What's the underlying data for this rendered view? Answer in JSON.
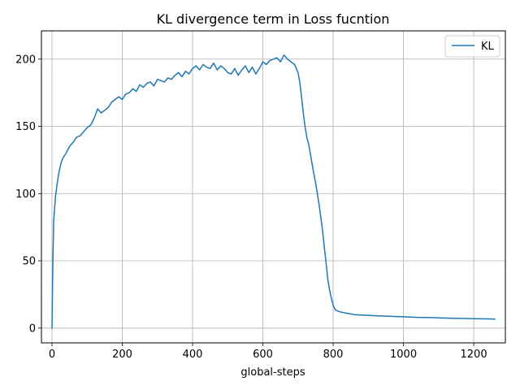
{
  "chart_data": {
    "type": "line",
    "title": "KL divergence term in Loss fucntion",
    "xlabel": "global-steps",
    "ylabel": "",
    "xlim": [
      -30,
      1290
    ],
    "ylim": [
      -11,
      221
    ],
    "xticks": [
      0,
      200,
      400,
      600,
      800,
      1000,
      1200
    ],
    "yticks": [
      0,
      50,
      100,
      150,
      200
    ],
    "grid": true,
    "legend": "top-right",
    "series": [
      {
        "name": "KL",
        "color": "#1f77b4",
        "x": [
          0,
          2,
          5,
          10,
          15,
          20,
          25,
          30,
          40,
          50,
          60,
          70,
          80,
          90,
          100,
          110,
          120,
          130,
          140,
          150,
          160,
          170,
          180,
          190,
          200,
          210,
          220,
          230,
          240,
          250,
          260,
          270,
          280,
          290,
          300,
          310,
          320,
          330,
          340,
          350,
          360,
          370,
          380,
          390,
          400,
          410,
          420,
          430,
          440,
          450,
          460,
          470,
          480,
          490,
          500,
          510,
          520,
          530,
          540,
          550,
          560,
          570,
          580,
          590,
          600,
          610,
          620,
          630,
          640,
          650,
          660,
          670,
          680,
          690,
          700,
          705,
          710,
          715,
          720,
          725,
          730,
          735,
          740,
          745,
          750,
          755,
          760,
          765,
          770,
          775,
          780,
          785,
          790,
          795,
          800,
          805,
          810,
          815,
          820,
          830,
          840,
          850,
          860,
          880,
          900,
          920,
          940,
          960,
          980,
          1000,
          1020,
          1040,
          1060,
          1080,
          1100,
          1120,
          1140,
          1160,
          1180,
          1200,
          1220,
          1240,
          1260
        ],
        "y": [
          0,
          40,
          80,
          98,
          108,
          116,
          122,
          126,
          130,
          135,
          138,
          142,
          143,
          146,
          149,
          151,
          156,
          163,
          160,
          162,
          164,
          168,
          170,
          172,
          170,
          174,
          175,
          178,
          176,
          181,
          179,
          182,
          183,
          180,
          185,
          184,
          183,
          186,
          185,
          188,
          190,
          187,
          191,
          189,
          193,
          195,
          192,
          196,
          194,
          193,
          197,
          192,
          195,
          193,
          190,
          189,
          193,
          188,
          192,
          195,
          190,
          194,
          189,
          193,
          198,
          196,
          199,
          200,
          201,
          198,
          203,
          200,
          198,
          196,
          190,
          183,
          172,
          160,
          150,
          142,
          137,
          130,
          122,
          115,
          108,
          100,
          92,
          82,
          72,
          60,
          48,
          36,
          28,
          22,
          17,
          14,
          13,
          12.5,
          12,
          11.5,
          11,
          10.5,
          10,
          9.7,
          9.5,
          9.2,
          9,
          8.8,
          8.6,
          8.4,
          8.2,
          8,
          7.9,
          7.8,
          7.6,
          7.4,
          7.3,
          7.2,
          7.1,
          7,
          6.9,
          6.8,
          6.7
        ]
      }
    ]
  }
}
